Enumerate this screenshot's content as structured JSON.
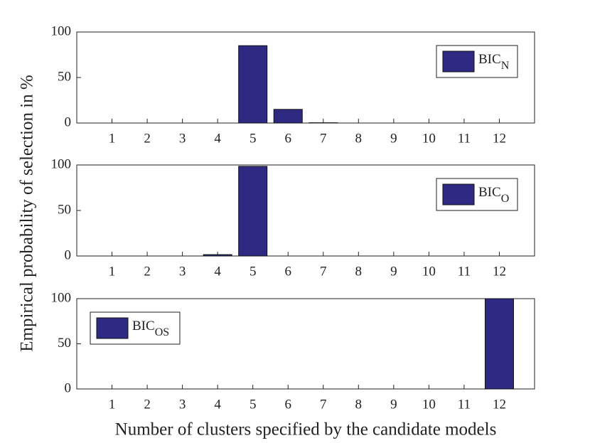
{
  "chart_data": [
    {
      "type": "bar",
      "x": [
        1,
        2,
        3,
        4,
        5,
        6,
        7,
        8,
        9,
        10,
        11,
        12
      ],
      "series": [
        {
          "name": "BIC",
          "subscript": "N",
          "color": "#2e2a82",
          "values": [
            0,
            0,
            0,
            0,
            85,
            15,
            0.3,
            0,
            0,
            0,
            0,
            0
          ]
        }
      ],
      "xlim": [
        0,
        13
      ],
      "xticks": [
        1,
        2,
        3,
        4,
        5,
        6,
        7,
        8,
        9,
        10,
        11,
        12
      ],
      "ylim": [
        0,
        100
      ],
      "yticks": [
        0,
        50,
        100
      ],
      "grid": false,
      "legend": "northeast"
    },
    {
      "type": "bar",
      "x": [
        1,
        2,
        3,
        4,
        5,
        6,
        7,
        8,
        9,
        10,
        11,
        12
      ],
      "series": [
        {
          "name": "BIC",
          "subscript": "O",
          "color": "#2e2a82",
          "values": [
            0,
            0,
            0,
            1.5,
            98.5,
            0,
            0,
            0,
            0,
            0,
            0,
            0
          ]
        }
      ],
      "xlim": [
        0,
        13
      ],
      "xticks": [
        1,
        2,
        3,
        4,
        5,
        6,
        7,
        8,
        9,
        10,
        11,
        12
      ],
      "ylim": [
        0,
        100
      ],
      "yticks": [
        0,
        50,
        100
      ],
      "grid": false,
      "legend": "northeast"
    },
    {
      "type": "bar",
      "x": [
        1,
        2,
        3,
        4,
        5,
        6,
        7,
        8,
        9,
        10,
        11,
        12
      ],
      "series": [
        {
          "name": "BIC",
          "subscript": "OS",
          "color": "#2e2a82",
          "values": [
            0,
            0,
            0,
            0,
            0,
            0,
            0,
            0,
            0,
            0,
            0,
            100
          ]
        }
      ],
      "xlim": [
        0,
        13
      ],
      "xticks": [
        1,
        2,
        3,
        4,
        5,
        6,
        7,
        8,
        9,
        10,
        11,
        12
      ],
      "ylim": [
        0,
        100
      ],
      "yticks": [
        0,
        50,
        100
      ],
      "grid": false,
      "legend": "northwest"
    }
  ],
  "xlabel": "Number of clusters specified by the candidate models",
  "ylabel": "Empirical probability of selection in %"
}
